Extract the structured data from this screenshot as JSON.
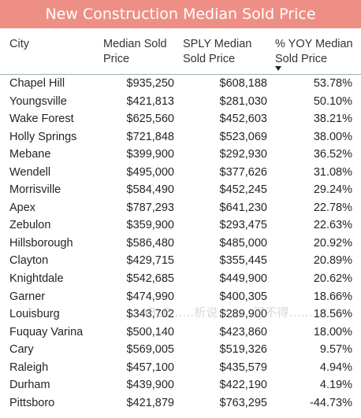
{
  "title": "New Construction Median Sold Price",
  "headers": {
    "city": "City",
    "median": [
      "Median Sold",
      "Price"
    ],
    "sply": [
      "SPLY Median",
      "Sold Price"
    ],
    "yoy": [
      "% YOY Median",
      "Sold Price"
    ]
  },
  "sort": {
    "column": "% YOY Median Sold Price",
    "direction": "descending"
  },
  "rows": [
    {
      "city": "Chapel Hill",
      "median": "$935,250",
      "sply": "$608,188",
      "yoy": "53.78%"
    },
    {
      "city": "Youngsville",
      "median": "$421,813",
      "sply": "$281,030",
      "yoy": "50.10%"
    },
    {
      "city": "Wake Forest",
      "median": "$625,560",
      "sply": "$452,603",
      "yoy": "38.21%"
    },
    {
      "city": "Holly Springs",
      "median": "$721,848",
      "sply": "$523,069",
      "yoy": "38.00%"
    },
    {
      "city": "Mebane",
      "median": "$399,900",
      "sply": "$292,930",
      "yoy": "36.52%"
    },
    {
      "city": "Wendell",
      "median": "$495,000",
      "sply": "$377,626",
      "yoy": "31.08%"
    },
    {
      "city": "Morrisville",
      "median": "$584,490",
      "sply": "$452,245",
      "yoy": "29.24%"
    },
    {
      "city": "Apex",
      "median": "$787,293",
      "sply": "$641,230",
      "yoy": "22.78%"
    },
    {
      "city": "Zebulon",
      "median": "$359,900",
      "sply": "$293,475",
      "yoy": "22.63%"
    },
    {
      "city": "Hillsborough",
      "median": "$586,480",
      "sply": "$485,000",
      "yoy": "20.92%"
    },
    {
      "city": "Clayton",
      "median": "$429,715",
      "sply": "$355,445",
      "yoy": "20.89%"
    },
    {
      "city": "Knightdale",
      "median": "$542,685",
      "sply": "$449,900",
      "yoy": "20.62%"
    },
    {
      "city": "Garner",
      "median": "$474,990",
      "sply": "$400,305",
      "yoy": "18.66%"
    },
    {
      "city": "Louisburg",
      "median": "$343,702",
      "sply": "$289,900",
      "yoy": "18.56%"
    },
    {
      "city": "Fuquay Varina",
      "median": "$500,140",
      "sply": "$423,860",
      "yoy": "18.00%"
    },
    {
      "city": "Cary",
      "median": "$569,005",
      "sply": "$519,326",
      "yoy": "9.57%"
    },
    {
      "city": "Raleigh",
      "median": "$457,100",
      "sply": "$435,579",
      "yoy": "4.94%"
    },
    {
      "city": "Durham",
      "median": "$439,900",
      "sply": "$422,190",
      "yoy": "4.19%"
    },
    {
      "city": "Pittsboro",
      "median": "$421,879",
      "sply": "$763,295",
      "yoy": "-44.73%"
    }
  ],
  "watermark": "ABLE……析说，……可不得……"
}
